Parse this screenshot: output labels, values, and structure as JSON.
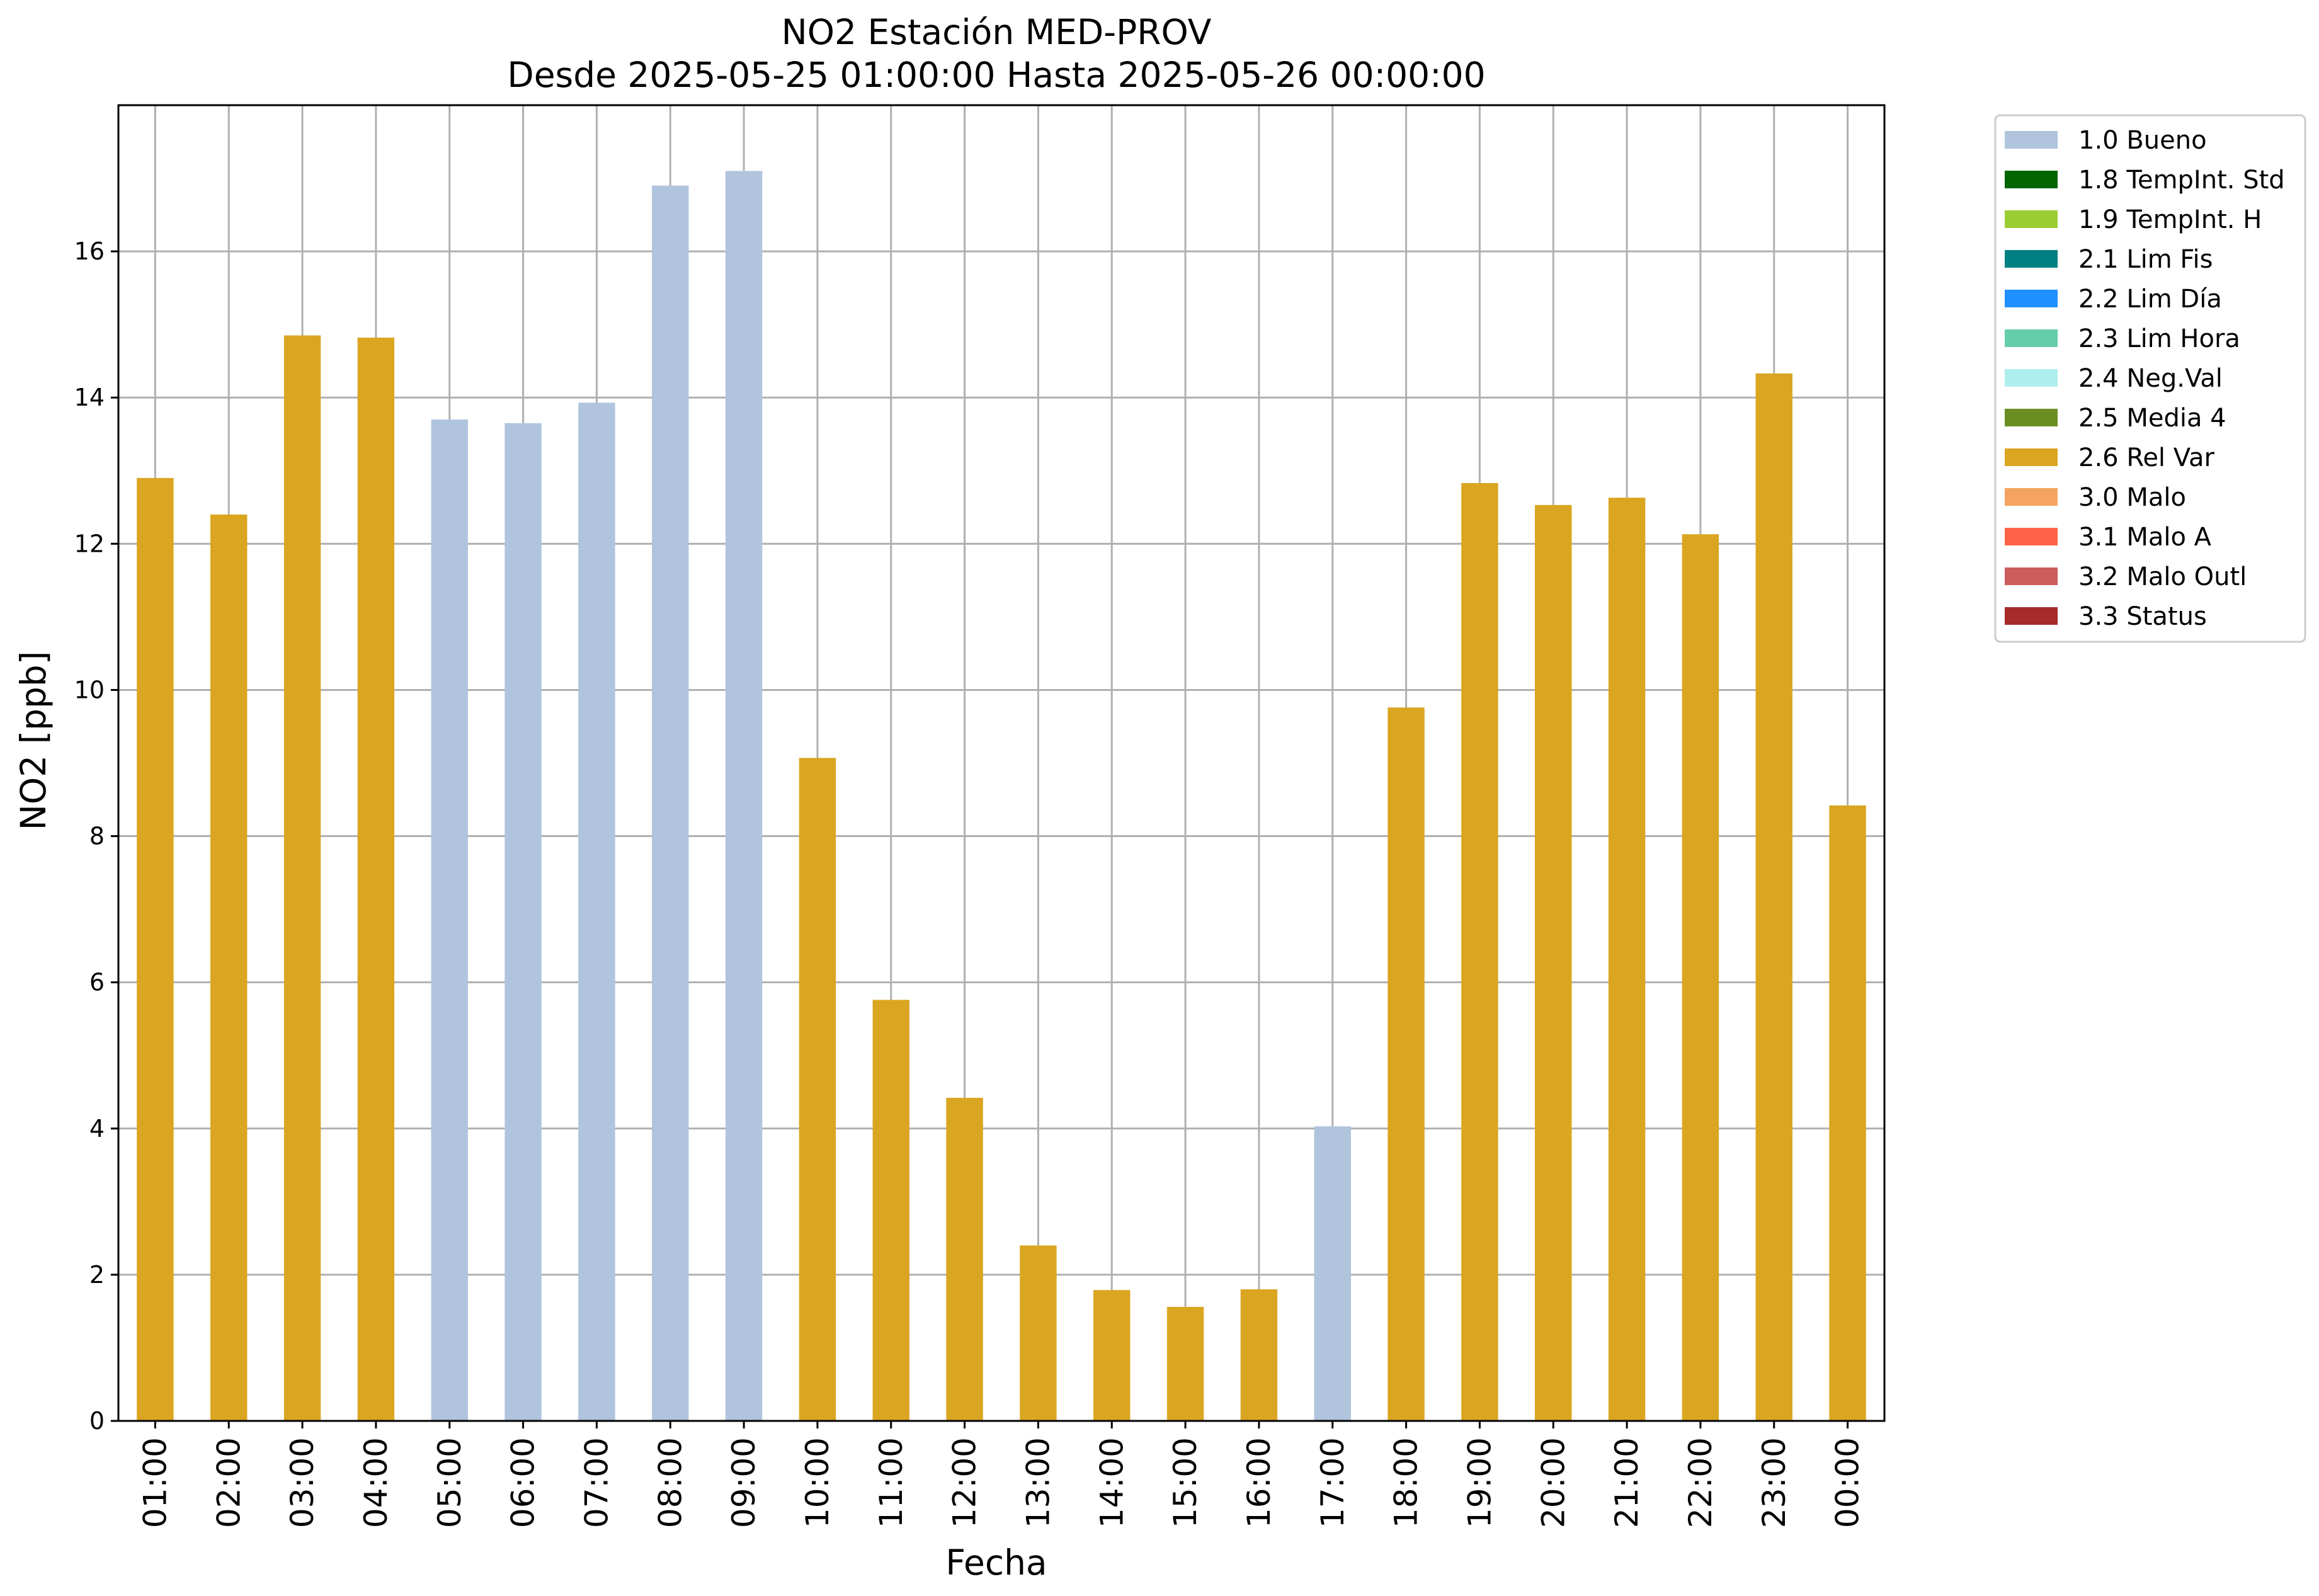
{
  "chart_data": {
    "type": "bar",
    "title": "NO2 Estación MED-PROV",
    "subtitle": "Desde 2025-05-25 01:00:00 Hasta 2025-05-26 00:00:00",
    "xlabel": "Fecha",
    "ylabel": "NO2 [ppb]",
    "ylim": [
      0,
      18
    ],
    "yticks": [
      0,
      2,
      4,
      6,
      8,
      10,
      12,
      14,
      16
    ],
    "grid": true,
    "legend_position": "outside-right-top",
    "categories": [
      "01:00",
      "02:00",
      "03:00",
      "04:00",
      "05:00",
      "06:00",
      "07:00",
      "08:00",
      "09:00",
      "10:00",
      "11:00",
      "12:00",
      "13:00",
      "14:00",
      "15:00",
      "16:00",
      "17:00",
      "18:00",
      "19:00",
      "20:00",
      "21:00",
      "22:00",
      "23:00",
      "00:00"
    ],
    "values": [
      12.9,
      12.4,
      14.85,
      14.82,
      13.7,
      13.65,
      13.93,
      16.9,
      17.1,
      9.07,
      5.76,
      4.42,
      2.4,
      1.79,
      1.56,
      1.8,
      4.03,
      9.76,
      12.83,
      12.53,
      12.63,
      12.13,
      14.33,
      8.42
    ],
    "flags": [
      "2.6 Rel Var",
      "2.6 Rel Var",
      "2.6 Rel Var",
      "2.6 Rel Var",
      "1.0 Bueno",
      "1.0 Bueno",
      "1.0 Bueno",
      "1.0 Bueno",
      "1.0 Bueno",
      "2.6 Rel Var",
      "2.6 Rel Var",
      "2.6 Rel Var",
      "2.6 Rel Var",
      "2.6 Rel Var",
      "2.6 Rel Var",
      "2.6 Rel Var",
      "1.0 Bueno",
      "2.6 Rel Var",
      "2.6 Rel Var",
      "2.6 Rel Var",
      "2.6 Rel Var",
      "2.6 Rel Var",
      "2.6 Rel Var",
      "2.6 Rel Var"
    ],
    "legend": [
      {
        "label": "1.0 Bueno",
        "color": "#b0c4de"
      },
      {
        "label": "1.8 TempInt. Std",
        "color": "#006400"
      },
      {
        "label": "1.9 TempInt. H",
        "color": "#9acd32"
      },
      {
        "label": "2.1 Lim Fis",
        "color": "#008080"
      },
      {
        "label": "2.2 Lim Día",
        "color": "#1e90ff"
      },
      {
        "label": "2.3 Lim Hora",
        "color": "#66cdaa"
      },
      {
        "label": "2.4 Neg.Val",
        "color": "#afeeee"
      },
      {
        "label": "2.5 Media 4",
        "color": "#6b8e23"
      },
      {
        "label": "2.6 Rel Var",
        "color": "#daa520"
      },
      {
        "label": "3.0 Malo",
        "color": "#f4a460"
      },
      {
        "label": "3.1 Malo A",
        "color": "#ff6347"
      },
      {
        "label": "3.2 Malo Outl",
        "color": "#cd5c5c"
      },
      {
        "label": "3.3 Status",
        "color": "#a52a2a"
      }
    ]
  }
}
